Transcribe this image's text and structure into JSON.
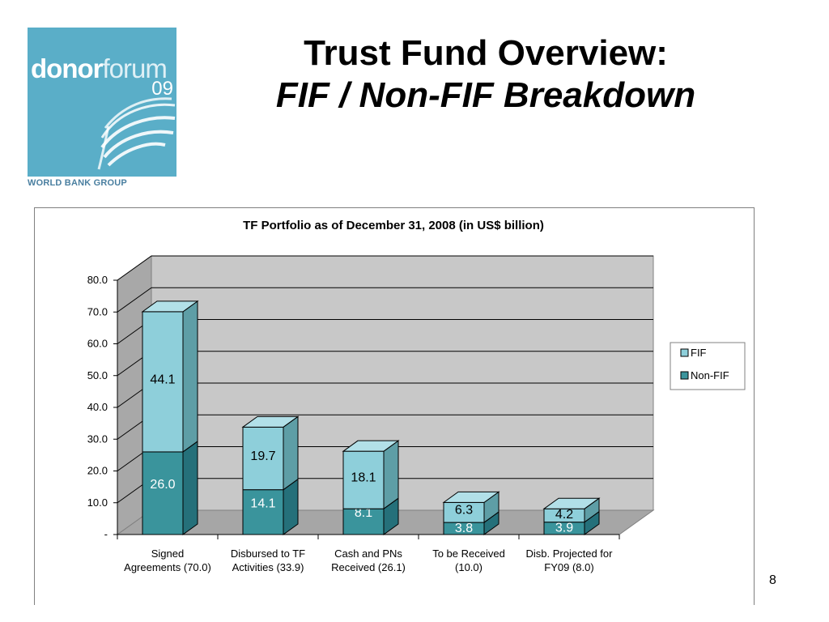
{
  "logo": {
    "word_a": "donor",
    "word_b": "forum",
    "year": "09",
    "caption": "WORLD BANK GROUP"
  },
  "slide": {
    "title_line1": "Trust Fund Overview:",
    "title_line2": "FIF / Non-FIF Breakdown",
    "page_number": "8"
  },
  "chart_data": {
    "type": "bar",
    "stacked": true,
    "three_d": true,
    "title": "TF Portfolio as of December 31, 2008 (in US$ billion)",
    "categories": [
      [
        "Signed",
        "Agreements (70.0)"
      ],
      [
        "Disbursed to TF",
        "Activities (33.9)"
      ],
      [
        "Cash and PNs",
        "Received (26.1)"
      ],
      [
        "To be Received",
        "(10.0)"
      ],
      [
        "Disb. Projected for",
        "FY09 (8.0)"
      ]
    ],
    "series": [
      {
        "name": "Non-FIF",
        "values": [
          26.0,
          14.1,
          8.1,
          3.8,
          3.9
        ],
        "labels": [
          "26.0",
          "14.1",
          "8.1",
          "3.8",
          "3.9"
        ],
        "color": "#3a949c",
        "side": "#25707a",
        "top": "#56b0b8"
      },
      {
        "name": "FIF",
        "values": [
          44.1,
          19.7,
          18.1,
          6.3,
          4.2
        ],
        "labels": [
          "44.1",
          "19.7",
          "18.1",
          "6.3",
          "4.2"
        ],
        "color": "#8ecfda",
        "side": "#5e9ea6",
        "top": "#b2e0e8"
      }
    ],
    "ylim": [
      0,
      80
    ],
    "yticks": [
      0,
      10,
      20,
      30,
      40,
      50,
      60,
      70,
      80
    ],
    "ytick_labels": [
      "-",
      "10.0",
      "20.0",
      "30.0",
      "40.0",
      "50.0",
      "60.0",
      "70.0",
      "80.0"
    ],
    "legend": [
      "FIF",
      "Non-FIF"
    ],
    "legend_position": "right",
    "grid": true,
    "wall_color": "#c8c8c8",
    "side_wall_color": "#a8a8a8",
    "floor_color": "#a6a6a6"
  }
}
